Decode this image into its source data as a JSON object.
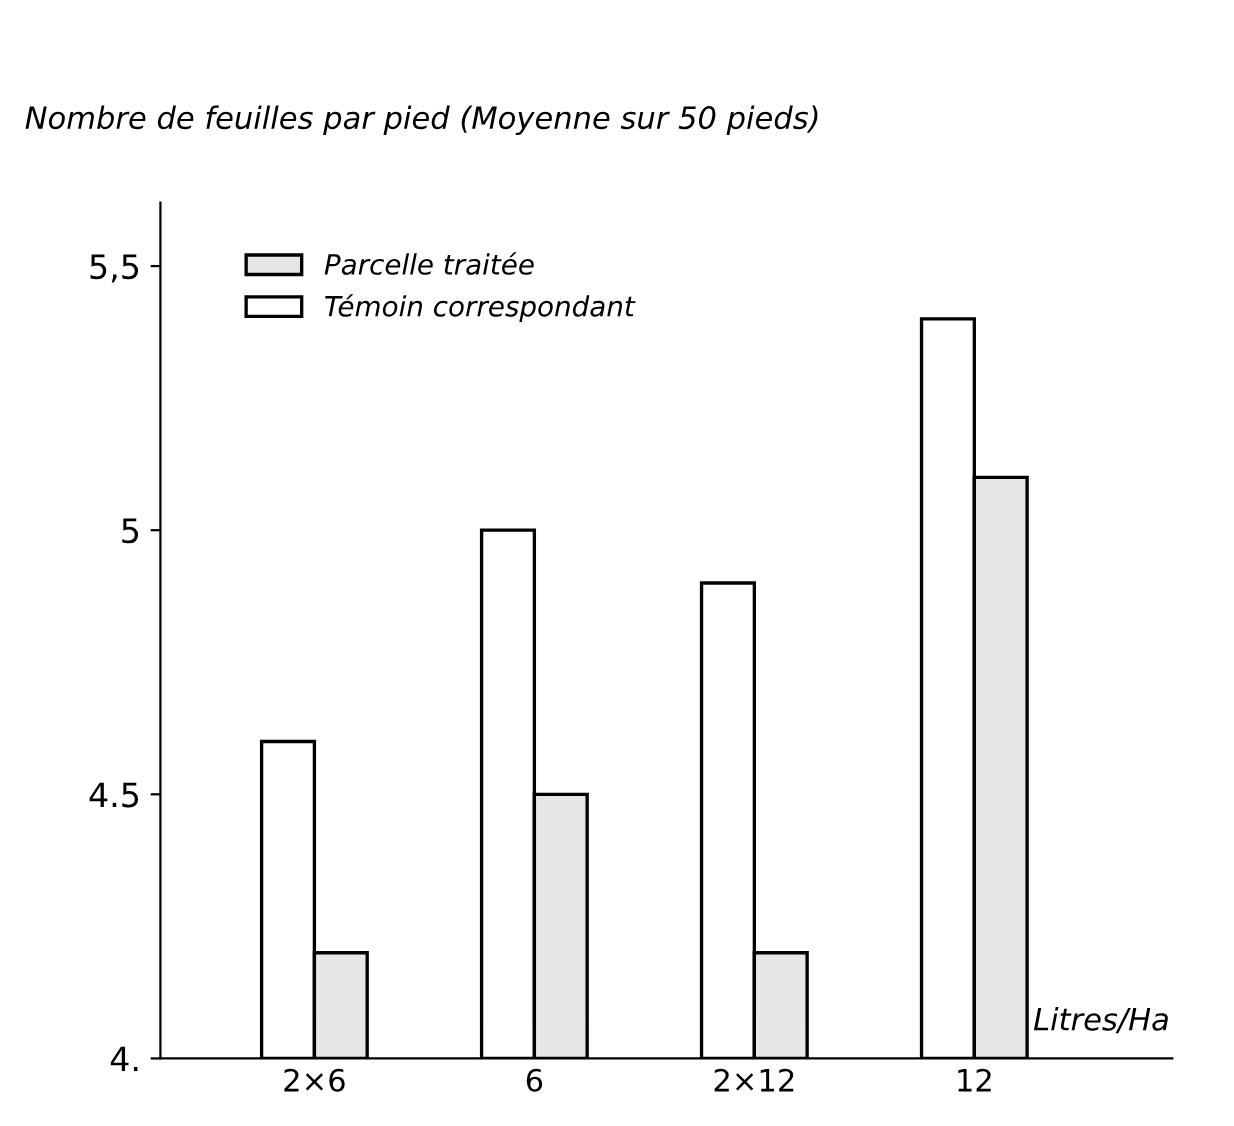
{
  "chart_data": {
    "type": "bar",
    "ylabel": "Nombre de feuilles par pied (Moyenne sur 50 pieds)",
    "xlabel": "Litres/Ha",
    "categories": [
      "2×6",
      "6",
      "2×12",
      "12"
    ],
    "series": [
      {
        "name": "Témoin correspondant",
        "color": "#ffffff",
        "values": [
          4.6,
          5.0,
          4.9,
          5.4
        ]
      },
      {
        "name": "Parcelle traitée",
        "color": "#e6e6e6",
        "values": [
          4.2,
          4.5,
          4.2,
          5.1
        ]
      }
    ],
    "ylim": [
      4,
      5.62
    ],
    "yticks": [
      {
        "value": 4,
        "label": "4."
      },
      {
        "value": 4.5,
        "label": "4.5"
      },
      5,
      {
        "value": 5.5,
        "label": "5,5"
      }
    ],
    "grid": false,
    "legend": "top left"
  }
}
